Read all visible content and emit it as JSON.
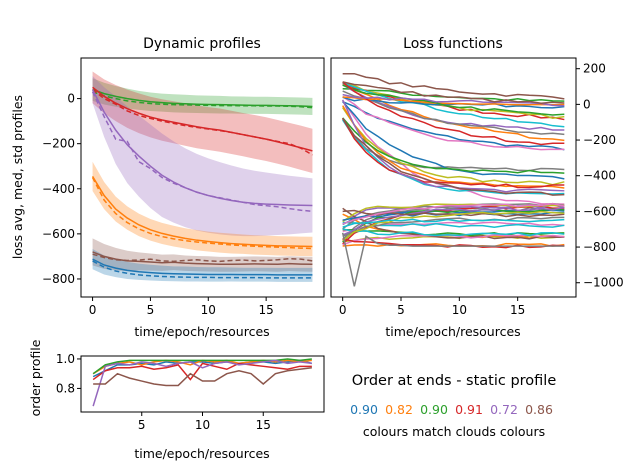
{
  "chart_data": [
    {
      "type": "line",
      "title": "Dynamic profiles",
      "xlabel": "time/epoch/resources",
      "ylabel": "loss avg, med, std profiles",
      "xlim": [
        -1,
        20
      ],
      "ylim": [
        -880,
        180
      ],
      "xticks": [
        "0",
        "5",
        "10",
        "15"
      ],
      "yticks": [
        "0",
        "−200",
        "−400",
        "−600",
        "−800"
      ],
      "x": [
        0,
        1,
        2,
        3,
        4,
        5,
        6,
        7,
        8,
        9,
        10,
        11,
        12,
        13,
        14,
        15,
        16,
        17,
        18,
        19
      ],
      "series": [
        {
          "color": "#2ca02c",
          "mean": [
            40,
            22,
            10,
            0,
            -8,
            -14,
            -18,
            -21,
            -23,
            -25,
            -26,
            -27,
            -28,
            -29,
            -30,
            -30,
            -31,
            -32,
            -33,
            -35
          ],
          "median": [
            30,
            12,
            0,
            -10,
            -17,
            -22,
            -25,
            -27,
            -28,
            -29,
            -30,
            -31,
            -31,
            -32,
            -32,
            -33,
            -33,
            -34,
            -36,
            -40
          ],
          "std": [
            50,
            48,
            46,
            44,
            42,
            41,
            40,
            40,
            40,
            39,
            39,
            39,
            38,
            38,
            38,
            38,
            38,
            38,
            38,
            38
          ]
        },
        {
          "color": "#d62728",
          "mean": [
            50,
            10,
            -20,
            -45,
            -65,
            -82,
            -95,
            -105,
            -115,
            -125,
            -133,
            -140,
            -150,
            -160,
            -170,
            -180,
            -192,
            -205,
            -218,
            -232
          ],
          "median": [
            40,
            0,
            -25,
            -55,
            -75,
            -88,
            -100,
            -110,
            -120,
            -128,
            -135,
            -142,
            -150,
            -160,
            -170,
            -180,
            -190,
            -200,
            -220,
            -250
          ],
          "std": [
            70,
            75,
            80,
            85,
            88,
            90,
            92,
            93,
            94,
            95,
            95,
            96,
            96,
            96,
            97,
            97,
            97,
            97,
            98,
            98
          ]
        },
        {
          "color": "#9467bd",
          "mean": [
            40,
            -60,
            -140,
            -205,
            -255,
            -300,
            -340,
            -370,
            -395,
            -415,
            -430,
            -442,
            -452,
            -460,
            -465,
            -468,
            -470,
            -472,
            -473,
            -474
          ],
          "median": [
            30,
            -80,
            -180,
            -190,
            -280,
            -310,
            -350,
            -375,
            -395,
            -415,
            -430,
            -440,
            -450,
            -460,
            -470,
            -475,
            -480,
            -488,
            -495,
            -500
          ],
          "std": [
            60,
            110,
            150,
            170,
            180,
            185,
            185,
            180,
            175,
            170,
            165,
            160,
            155,
            150,
            145,
            140,
            135,
            130,
            125,
            120
          ]
        },
        {
          "color": "#ff7f0e",
          "mean": [
            -345,
            -430,
            -490,
            -530,
            -560,
            -582,
            -598,
            -610,
            -620,
            -628,
            -634,
            -639,
            -643,
            -646,
            -649,
            -651,
            -653,
            -654,
            -655,
            -656
          ],
          "median": [
            -350,
            -450,
            -510,
            -550,
            -578,
            -598,
            -612,
            -622,
            -630,
            -636,
            -641,
            -645,
            -649,
            -652,
            -655,
            -657,
            -659,
            -661,
            -663,
            -665
          ],
          "std": [
            65,
            60,
            55,
            52,
            50,
            48,
            47,
            46,
            45,
            45,
            44,
            44,
            44,
            43,
            43,
            43,
            43,
            43,
            43,
            43
          ]
        },
        {
          "color": "#8c564b",
          "mean": [
            -680,
            -700,
            -712,
            -720,
            -722,
            -725,
            -728,
            -726,
            -730,
            -732,
            -733,
            -735,
            -735,
            -734,
            -733,
            -734,
            -735,
            -732,
            -734,
            -735
          ],
          "median": [
            -690,
            -705,
            -715,
            -718,
            -716,
            -712,
            -720,
            -722,
            -718,
            -715,
            -720,
            -722,
            -718,
            -716,
            -720,
            -718,
            -715,
            -710,
            -712,
            -720
          ],
          "std": [
            60,
            55,
            50,
            45,
            40,
            38,
            36,
            35,
            34,
            34,
            34,
            33,
            33,
            33,
            33,
            33,
            33,
            33,
            33,
            33
          ]
        },
        {
          "color": "#1f77b4",
          "mean": [
            -712,
            -738,
            -752,
            -762,
            -768,
            -772,
            -775,
            -777,
            -778,
            -779,
            -780,
            -780,
            -780,
            -781,
            -781,
            -781,
            -782,
            -782,
            -782,
            -782
          ],
          "median": [
            -720,
            -748,
            -765,
            -775,
            -782,
            -786,
            -789,
            -791,
            -792,
            -793,
            -793,
            -794,
            -794,
            -794,
            -794,
            -795,
            -795,
            -795,
            -795,
            -795
          ],
          "std": [
            45,
            42,
            40,
            38,
            36,
            35,
            34,
            33,
            33,
            32,
            32,
            32,
            31,
            31,
            31,
            31,
            31,
            31,
            31,
            31
          ]
        }
      ]
    },
    {
      "type": "line",
      "title": "Loss functions",
      "xlabel": "time/epoch/resources",
      "ylabel": "",
      "xlim": [
        -1,
        20
      ],
      "ylim": [
        -1080,
        260
      ],
      "xticks": [
        "0",
        "5",
        "10",
        "15"
      ],
      "yticks": [
        "200",
        "0",
        "−200",
        "−400",
        "−600",
        "−800",
        "−1000"
      ],
      "note": "many individual loss curves (~50), tab10 colours, final values roughly between 60 and −820"
    },
    {
      "type": "line",
      "title": "",
      "xlabel": "time/epoch/resources",
      "ylabel": "order profile",
      "xlim": [
        0,
        20
      ],
      "ylim": [
        0.64,
        1.02
      ],
      "xticks": [
        "5",
        "10",
        "15"
      ],
      "yticks": [
        "1.0",
        "0.8"
      ],
      "x": [
        1,
        2,
        3,
        4,
        5,
        6,
        7,
        8,
        9,
        10,
        11,
        12,
        13,
        14,
        15,
        16,
        17,
        18,
        19
      ],
      "series": [
        {
          "color": "#1f77b4",
          "values": [
            0.88,
            0.92,
            0.96,
            0.96,
            0.97,
            0.96,
            0.98,
            0.97,
            0.98,
            0.98,
            0.97,
            0.98,
            0.97,
            0.98,
            0.98,
            0.97,
            0.98,
            0.99,
            0.97
          ]
        },
        {
          "color": "#ff7f0e",
          "values": [
            0.9,
            0.95,
            0.97,
            0.98,
            0.96,
            0.98,
            0.99,
            0.98,
            0.96,
            0.99,
            0.98,
            0.99,
            0.97,
            0.98,
            0.99,
            0.98,
            0.99,
            0.98,
            0.99
          ]
        },
        {
          "color": "#2ca02c",
          "values": [
            0.9,
            0.96,
            0.98,
            0.99,
            0.99,
            0.99,
            0.99,
            0.99,
            0.99,
            0.99,
            0.99,
            0.99,
            0.99,
            0.99,
            0.99,
            0.99,
            1.0,
            0.99,
            1.0
          ]
        },
        {
          "color": "#d62728",
          "values": [
            0.86,
            0.92,
            0.94,
            0.94,
            0.95,
            0.93,
            0.94,
            0.96,
            0.86,
            0.97,
            0.95,
            0.93,
            0.97,
            0.96,
            0.95,
            0.94,
            0.93,
            0.95,
            0.95
          ]
        },
        {
          "color": "#9467bd",
          "values": [
            0.68,
            0.95,
            0.97,
            0.96,
            0.98,
            0.97,
            0.95,
            0.97,
            0.98,
            0.94,
            0.97,
            0.98,
            0.96,
            0.97,
            0.98,
            0.99,
            0.97,
            0.98,
            0.97
          ]
        },
        {
          "color": "#8c564b",
          "values": [
            0.83,
            0.83,
            0.9,
            0.87,
            0.85,
            0.83,
            0.82,
            0.82,
            0.9,
            0.85,
            0.85,
            0.9,
            0.92,
            0.9,
            0.83,
            0.9,
            0.92,
            0.93,
            0.94
          ]
        }
      ]
    }
  ],
  "order_panel": {
    "title": "Order at ends - static profile",
    "values": [
      {
        "text": "0.90",
        "color": "#1f77b4"
      },
      {
        "text": "0.82",
        "color": "#ff7f0e"
      },
      {
        "text": "0.90",
        "color": "#2ca02c"
      },
      {
        "text": "0.91",
        "color": "#d62728"
      },
      {
        "text": "0.72",
        "color": "#9467bd"
      },
      {
        "text": "0.86",
        "color": "#8c564b"
      }
    ],
    "caption": "colours match clouds colours"
  }
}
